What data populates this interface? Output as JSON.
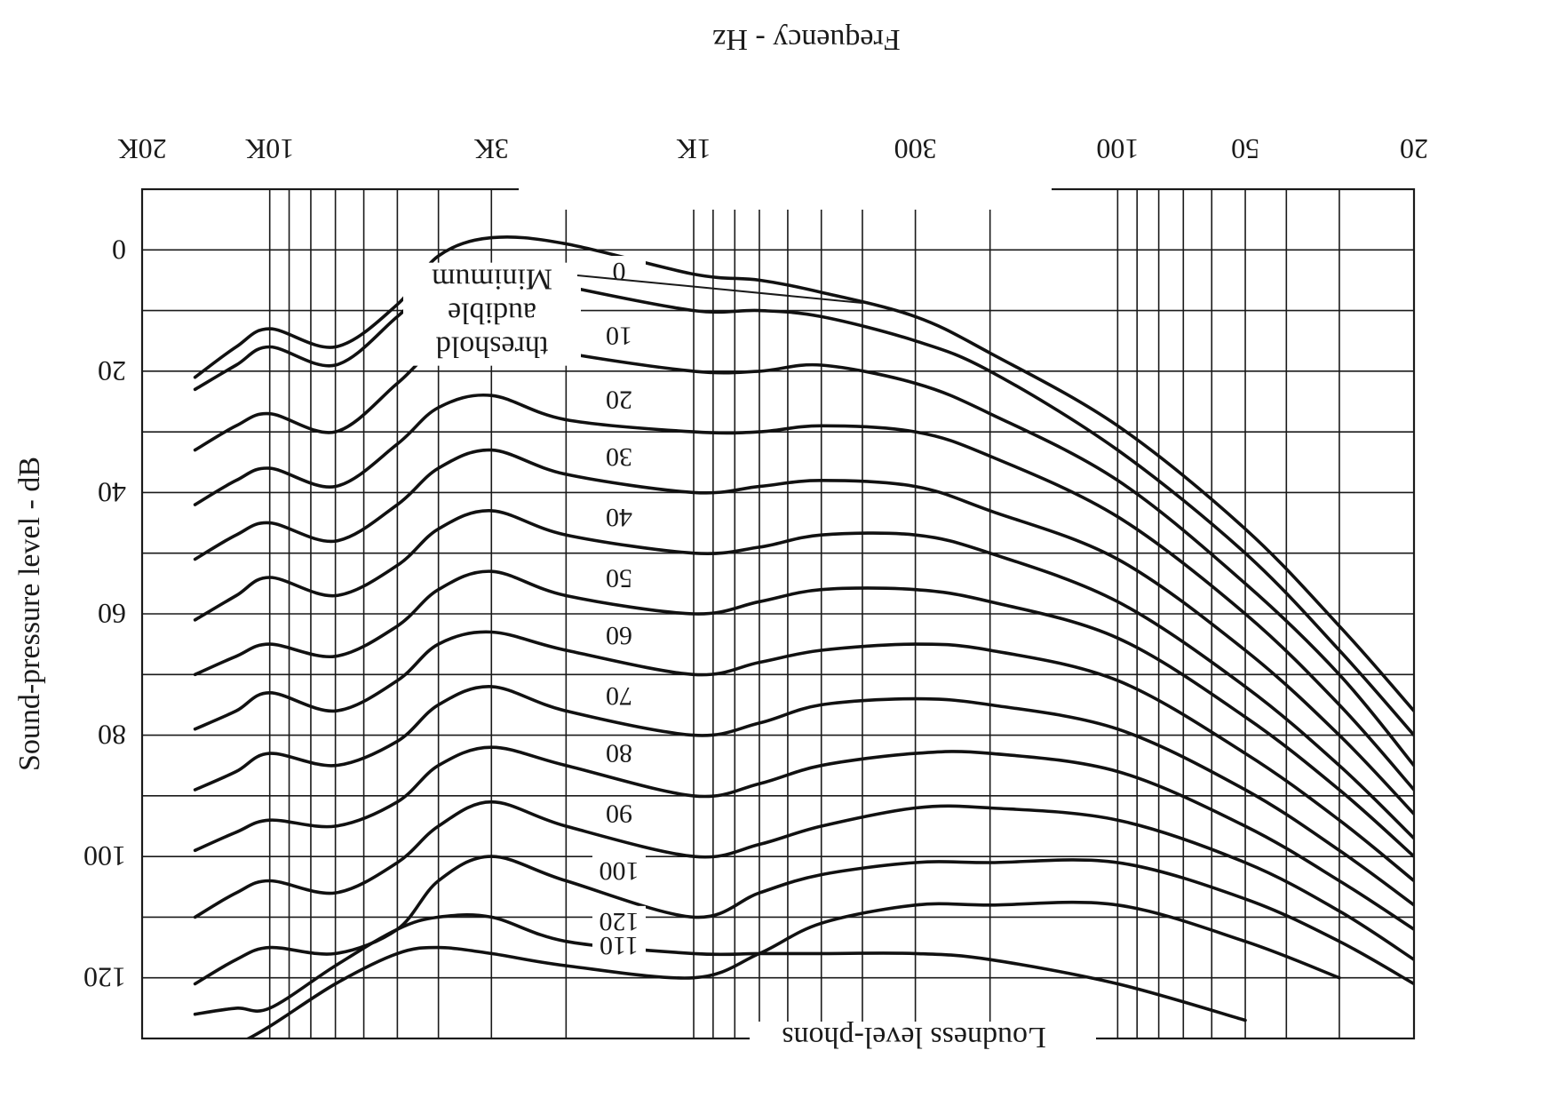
{
  "chart_data": {
    "type": "line",
    "title": "",
    "xlabel": "Frequency - Hz",
    "ylabel": "Sound-pressure level - dB",
    "bottom_label": "Loudness level-phons",
    "x_scale": "log",
    "xlim": [
      20,
      20000
    ],
    "ylim": [
      -10,
      130
    ],
    "y_inverted": true,
    "x_ticks": [
      {
        "value": 20,
        "label": "20"
      },
      {
        "value": 50,
        "label": "50"
      },
      {
        "value": 100,
        "label": "100"
      },
      {
        "value": 300,
        "label": "300"
      },
      {
        "value": 1000,
        "label": "1K"
      },
      {
        "value": 3000,
        "label": "3K"
      },
      {
        "value": 10000,
        "label": "10K"
      },
      {
        "value": 20000,
        "label": "20K"
      }
    ],
    "y_ticks": [
      {
        "value": 0,
        "label": "0"
      },
      {
        "value": 20,
        "label": "20"
      },
      {
        "value": 40,
        "label": "40"
      },
      {
        "value": 60,
        "label": "60"
      },
      {
        "value": 80,
        "label": "80"
      },
      {
        "value": 100,
        "label": "100"
      },
      {
        "value": 120,
        "label": "120"
      }
    ],
    "x_gridlines": [
      20,
      30,
      40,
      50,
      60,
      70,
      80,
      90,
      100,
      200,
      300,
      400,
      500,
      600,
      700,
      800,
      900,
      1000,
      2000,
      3000,
      4000,
      5000,
      6000,
      7000,
      8000,
      9000,
      10000,
      20000
    ],
    "y_gridlines": [
      -10,
      0,
      10,
      20,
      30,
      40,
      50,
      60,
      70,
      80,
      90,
      100,
      110,
      120,
      130
    ],
    "grid": true,
    "annotation": {
      "lines": [
        "Minimum",
        "audible",
        "threshold"
      ],
      "points_to_series": 0
    },
    "series": [
      {
        "name": "",
        "x": [
          20,
          30,
          50,
          100,
          200,
          300,
          500,
          700,
          1000,
          2000,
          3000,
          4000,
          5000,
          7000,
          10000,
          12000,
          15000
        ],
        "y": [
          76,
          62,
          46,
          29,
          17,
          11,
          7,
          5,
          4,
          -1,
          -2,
          1,
          9,
          16,
          13,
          16,
          21
        ]
      },
      {
        "name": "",
        "x": [
          20,
          30,
          50,
          100,
          200,
          300,
          500,
          700,
          1000,
          2000,
          3000,
          4000,
          5000,
          7000,
          10000,
          12000,
          15000
        ],
        "y": [
          80,
          66,
          50,
          33,
          20,
          15,
          11,
          10,
          10,
          6,
          3,
          5,
          11,
          19,
          16,
          19,
          23
        ]
      },
      {
        "name": "",
        "x": [
          20,
          30,
          50,
          100,
          200,
          300,
          500,
          700,
          1000,
          2000,
          3000,
          4000,
          5000,
          7000,
          10000,
          12000,
          15000
        ],
        "y": [
          85,
          70,
          55,
          38,
          27,
          22,
          19,
          20,
          20,
          17,
          14,
          16,
          22,
          30,
          27,
          29,
          33
        ]
      },
      {
        "name": "",
        "x": [
          20,
          30,
          50,
          100,
          200,
          300,
          500,
          700,
          1000,
          2000,
          3000,
          4000,
          5000,
          7000,
          10000,
          12000,
          15000
        ],
        "y": [
          89,
          75,
          60,
          44,
          34,
          30,
          29,
          30,
          30,
          28,
          24,
          26,
          32,
          39,
          36,
          38,
          42
        ]
      },
      {
        "name": "",
        "x": [
          20,
          30,
          50,
          100,
          200,
          300,
          500,
          700,
          1000,
          2000,
          3000,
          4000,
          5000,
          7000,
          10000,
          12000,
          15000
        ],
        "y": [
          93,
          80,
          66,
          51,
          43,
          39,
          38,
          39,
          40,
          37,
          33,
          36,
          42,
          48,
          45,
          47,
          51
        ]
      },
      {
        "name": "",
        "x": [
          20,
          30,
          50,
          100,
          200,
          300,
          500,
          700,
          1000,
          2000,
          3000,
          4000,
          5000,
          7000,
          10000,
          12000,
          15000
        ],
        "y": [
          97,
          85,
          72,
          58,
          50,
          47,
          47,
          49,
          50,
          47,
          43,
          46,
          52,
          57,
          54,
          57,
          61
        ]
      },
      {
        "name": "",
        "x": [
          20,
          30,
          50,
          100,
          200,
          300,
          500,
          700,
          1000,
          2000,
          3000,
          4000,
          5000,
          7000,
          10000,
          12000,
          15000
        ],
        "y": [
          100,
          89,
          77,
          64,
          58,
          56,
          56,
          58,
          60,
          57,
          53,
          56,
          62,
          67,
          65,
          67,
          70
        ]
      },
      {
        "name": "",
        "x": [
          20,
          30,
          50,
          100,
          200,
          300,
          500,
          700,
          1000,
          2000,
          3000,
          4000,
          5000,
          7000,
          10000,
          12000,
          15000
        ],
        "y": [
          104,
          94,
          83,
          71,
          66,
          65,
          66,
          68,
          70,
          66,
          63,
          65,
          71,
          76,
          73,
          76,
          79
        ]
      },
      {
        "name": "",
        "x": [
          20,
          30,
          50,
          100,
          200,
          300,
          500,
          700,
          1000,
          2000,
          3000,
          4000,
          5000,
          7000,
          10000,
          12000,
          15000
        ],
        "y": [
          108,
          99,
          89,
          79,
          75,
          74,
          75,
          78,
          80,
          76,
          72,
          75,
          81,
          85,
          83,
          86,
          89
        ]
      },
      {
        "name": "",
        "x": [
          20,
          30,
          50,
          100,
          200,
          300,
          500,
          700,
          1000,
          2000,
          3000,
          4000,
          5000,
          7000,
          10000,
          12000,
          15000
        ],
        "y": [
          112,
          104,
          95,
          86,
          83,
          83,
          85,
          88,
          90,
          85,
          82,
          85,
          91,
          95,
          94,
          96,
          99
        ]
      },
      {
        "name": "",
        "x": [
          20,
          30,
          50,
          100,
          200,
          300,
          500,
          700,
          1000,
          2000,
          3000,
          4000,
          5000,
          7000,
          10000,
          12000,
          15000
        ],
        "y": [
          117,
          109,
          101,
          94,
          92,
          92,
          95,
          98,
          100,
          95,
          91,
          95,
          101,
          106,
          104,
          106,
          110
        ]
      },
      {
        "name": "",
        "x": [
          20,
          30,
          50,
          100,
          200,
          300,
          500,
          700,
          1000,
          2000,
          3000,
          4000,
          5000,
          7000,
          10000,
          12000,
          15000
        ],
        "y": [
          121,
          114,
          107,
          101,
          101,
          101,
          103,
          106,
          110,
          104,
          100,
          104,
          112,
          116,
          115,
          117,
          121
        ]
      },
      {
        "name": "",
        "x": [
          30,
          50,
          100,
          200,
          300,
          500,
          700,
          1000,
          2000,
          3000,
          4000,
          5000,
          7000,
          10000,
          12000,
          15000
        ],
        "y": [
          120,
          114,
          108,
          108,
          108,
          111,
          116,
          120,
          118,
          116,
          115,
          116,
          121,
          128,
          131,
          134
        ]
      },
      {
        "name": "",
        "x": [
          50,
          100,
          200,
          300,
          500,
          700,
          1000,
          2000,
          3000,
          4000,
          5000,
          7000,
          10000,
          12000,
          15000
        ],
        "y": [
          127,
          121,
          117,
          116,
          116,
          116,
          116,
          114,
          110,
          110,
          112,
          118,
          125,
          125,
          126
        ]
      }
    ],
    "curve_labels": [
      {
        "text": "0",
        "series": 1
      },
      {
        "text": "10",
        "series": 2
      },
      {
        "text": "20",
        "series": 3
      },
      {
        "text": "30",
        "series": 4
      },
      {
        "text": "40",
        "series": 5
      },
      {
        "text": "50",
        "series": 6
      },
      {
        "text": "60",
        "series": 7
      },
      {
        "text": "70",
        "series": 8
      },
      {
        "text": "80",
        "series": 9
      },
      {
        "text": "90",
        "series": 10
      },
      {
        "text": "100",
        "series": 11
      },
      {
        "text": "110",
        "series": 12
      },
      {
        "text": "120",
        "series": 13
      }
    ]
  }
}
